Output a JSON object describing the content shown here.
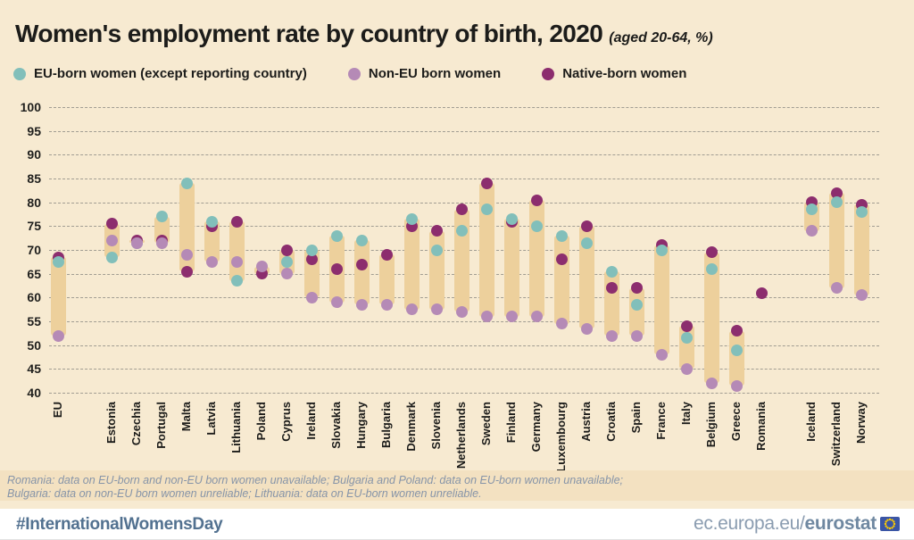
{
  "title": {
    "main": "Women's employment rate by country of birth, 2020",
    "sub": "(aged 20-64, %)"
  },
  "legend": [
    {
      "key": "eu-born",
      "label": "EU-born women (except reporting country)",
      "color": "#82bfba"
    },
    {
      "key": "non-eu-born",
      "label": "Non-EU born women",
      "color": "#b58ab6"
    },
    {
      "key": "native-born",
      "label": "Native-born women",
      "color": "#8c2d6e"
    }
  ],
  "chart_data": {
    "type": "scatter",
    "title": "Women's employment rate by country of birth, 2020",
    "subtitle": "(aged 20-64, %)",
    "ylabel": "employment rate (%)",
    "ylim": [
      40,
      100
    ],
    "ytick_step": 5,
    "grid": "horizontal-dashed",
    "legend_position": "top",
    "range_bar_color": "#edd09c",
    "gap_after": [
      "EU",
      "Romania"
    ],
    "categories": [
      "EU",
      "Estonia",
      "Czechia",
      "Portugal",
      "Malta",
      "Latvia",
      "Lithuania",
      "Poland",
      "Cyprus",
      "Ireland",
      "Slovakia",
      "Hungary",
      "Bulgaria",
      "Denmark",
      "Slovenia",
      "Netherlands",
      "Sweden",
      "Finland",
      "Germany",
      "Luxembourg",
      "Austria",
      "Croatia",
      "Spain",
      "France",
      "Italy",
      "Belgium",
      "Greece",
      "Romania",
      "Iceland",
      "Switzerland",
      "Norway"
    ],
    "series": [
      {
        "name": "EU-born women (except reporting country)",
        "key": "eu-born",
        "color": "#82bfba",
        "values": [
          67.5,
          68.5,
          71.5,
          77,
          84,
          76,
          63.5,
          null,
          67.5,
          70,
          73,
          72,
          null,
          76.5,
          70,
          74,
          78.5,
          76.5,
          75,
          73,
          71.5,
          65.5,
          58.5,
          70,
          51.5,
          66,
          49,
          null,
          78.5,
          80,
          78
        ]
      },
      {
        "name": "Non-EU born women",
        "key": "non-eu-born",
        "color": "#b58ab6",
        "values": [
          52,
          72,
          71.5,
          71.5,
          69,
          67.5,
          67.5,
          66.5,
          65,
          60,
          59,
          58.5,
          58.5,
          57.5,
          57.5,
          57,
          56,
          56,
          56,
          54.5,
          53.5,
          52,
          52,
          48,
          45,
          42,
          41.5,
          null,
          74,
          62,
          60.5
        ]
      },
      {
        "name": "Native-born women",
        "key": "native-born",
        "color": "#8c2d6e",
        "values": [
          68.5,
          75.5,
          72,
          72,
          65.5,
          75,
          76,
          65,
          70,
          68,
          66,
          67,
          69,
          75,
          74,
          78.5,
          84,
          76,
          80.5,
          68,
          75,
          62,
          62,
          71,
          54,
          69.5,
          53,
          61,
          80,
          82,
          79.5
        ]
      }
    ]
  },
  "footnotes": [
    "Romania: data on EU-born and non-EU born women unavailable; Bulgaria and Poland: data on EU-born women unavailable;",
    "Bulgaria: data on non-EU born women unreliable; Lithuania: data on EU-born women unreliable."
  ],
  "footer": {
    "hashtag": "#InternationalWomensDay",
    "site_regular": "ec.europa.eu/",
    "site_bold": "eurostat"
  }
}
